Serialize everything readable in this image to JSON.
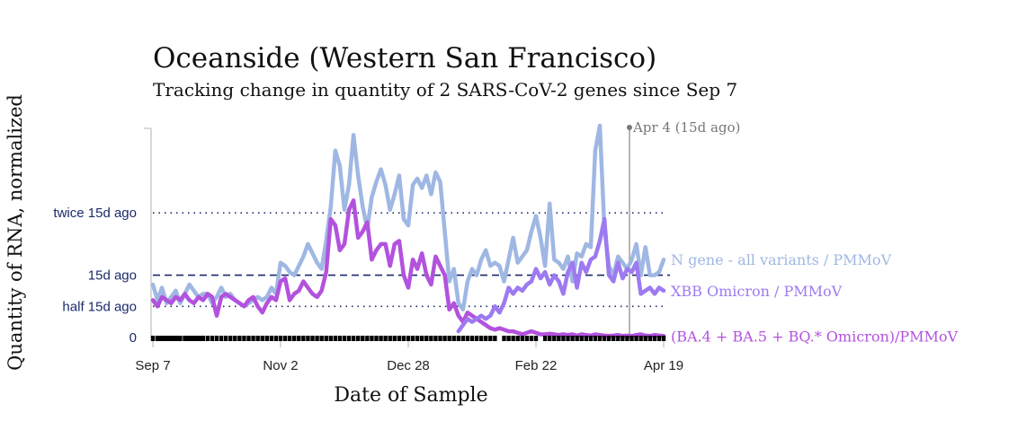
{
  "chart_data": {
    "type": "line",
    "title": "Oceanside (Western San Francisco)",
    "subtitle": "Tracking change in quantity of 2 SARS-CoV-2 genes since Sep 7",
    "xlabel": "Date of Sample",
    "ylabel": "Quantity of RNA, normalized",
    "x_ticks": [
      {
        "label": "Sep 7",
        "day": 0
      },
      {
        "label": "Nov 2",
        "day": 56
      },
      {
        "label": "Dec 28",
        "day": 112
      },
      {
        "label": "Feb 22",
        "day": 168
      },
      {
        "label": "Apr 19",
        "day": 224
      }
    ],
    "xlim": [
      0,
      224
    ],
    "ylim": [
      0,
      6.8
    ],
    "y_ticks": [
      {
        "label": "0",
        "value": 0
      },
      {
        "label": "half 15d ago",
        "value": 1,
        "style": "dotted"
      },
      {
        "label": "15d ago",
        "value": 2,
        "style": "dashed"
      },
      {
        "label": "twice 15d ago",
        "value": 4,
        "style": "dotted"
      }
    ],
    "annotation": {
      "label": "Apr 4 (15d ago)",
      "day": 209
    },
    "series": [
      {
        "name": "N gene - all variants / PMMoV",
        "label": "N gene - all variants / PMMoV",
        "color": "#9fb7e3",
        "x": [
          0,
          2,
          4,
          6,
          8,
          10,
          12,
          14,
          16,
          18,
          20,
          22,
          24,
          26,
          28,
          30,
          32,
          34,
          36,
          38,
          40,
          42,
          44,
          46,
          48,
          50,
          52,
          54,
          56,
          58,
          60,
          62,
          64,
          66,
          68,
          70,
          72,
          74,
          76,
          78,
          80,
          82,
          84,
          86,
          88,
          90,
          92,
          94,
          96,
          98,
          100,
          102,
          104,
          106,
          108,
          110,
          112,
          114,
          116,
          118,
          120,
          122,
          124,
          126,
          128,
          130,
          132,
          134,
          136,
          138,
          140,
          142,
          144,
          146,
          148,
          150,
          152,
          154,
          156,
          158,
          160,
          162,
          164,
          166,
          168,
          170,
          172,
          174,
          176,
          178,
          180,
          182,
          184,
          186,
          188,
          190,
          192,
          194,
          196,
          198,
          200,
          202,
          204,
          206,
          208,
          210,
          212,
          214,
          216,
          218,
          220,
          222,
          224
        ],
        "values": [
          1.7,
          1.2,
          1.6,
          1.1,
          1.3,
          1.5,
          1.1,
          1.4,
          1.7,
          1.5,
          1.3,
          1.4,
          1.4,
          1.1,
          1.3,
          1.6,
          1.3,
          1.4,
          1.2,
          1.1,
          1.0,
          1.1,
          1.2,
          1.3,
          1.2,
          1.3,
          1.6,
          1.4,
          2.4,
          2.3,
          2.1,
          2.0,
          2.3,
          2.6,
          3.0,
          2.7,
          2.4,
          2.2,
          3.1,
          4.2,
          6.0,
          5.5,
          4.1,
          4.9,
          6.5,
          5.2,
          4.2,
          3.5,
          4.5,
          5.0,
          5.4,
          4.9,
          4.1,
          4.6,
          5.2,
          3.8,
          3.6,
          4.9,
          5.1,
          4.8,
          5.2,
          4.6,
          5.3,
          5.0,
          3.4,
          1.8,
          2.2,
          1.1,
          0.9,
          1.8,
          2.2,
          2.0,
          2.5,
          2.8,
          2.3,
          2.4,
          2.3,
          1.8,
          2.5,
          3.2,
          2.4,
          2.6,
          2.8,
          3.4,
          3.9,
          3.2,
          2.3,
          4.3,
          2.5,
          2.4,
          2.2,
          2.6,
          1.8,
          2.7,
          2.6,
          3.0,
          2.9,
          6.0,
          6.8,
          3.5,
          2.3,
          2.0,
          2.6,
          2.4,
          2.2,
          2.5,
          3.0,
          2.0,
          2.9,
          2.0,
          2.0,
          2.1,
          2.5
        ]
      },
      {
        "name": "XBB Omicron / PMMoV",
        "label": "XBB Omicron / PMMoV",
        "color": "#9d7af0",
        "x": [
          134,
          136,
          138,
          140,
          142,
          144,
          146,
          148,
          150,
          152,
          154,
          156,
          158,
          160,
          162,
          164,
          166,
          168,
          170,
          172,
          174,
          176,
          178,
          180,
          182,
          184,
          186,
          188,
          190,
          192,
          194,
          196,
          198,
          200,
          202,
          204,
          206,
          208,
          210,
          212,
          214,
          216,
          218,
          220,
          222,
          224
        ],
        "values": [
          0.2,
          0.4,
          0.6,
          0.5,
          0.6,
          0.7,
          0.6,
          0.7,
          1.0,
          0.8,
          1.1,
          1.6,
          1.4,
          1.6,
          1.5,
          1.7,
          1.8,
          2.2,
          1.9,
          2.1,
          1.7,
          2.0,
          1.8,
          1.4,
          2.1,
          2.4,
          1.6,
          2.4,
          2.1,
          2.5,
          2.6,
          3.1,
          3.8,
          2.0,
          1.8,
          2.4,
          1.9,
          2.2,
          2.1,
          2.4,
          1.4,
          1.5,
          1.6,
          1.4,
          1.6,
          1.5
        ]
      },
      {
        "name": "(BA.4 + BA.5 + BQ.* Omicron)/PMMoV",
        "label": "(BA.4 + BA.5 + BQ.* Omicron)/PMMoV",
        "color": "#b252de",
        "x": [
          0,
          2,
          4,
          6,
          8,
          10,
          12,
          14,
          16,
          18,
          20,
          22,
          24,
          26,
          28,
          30,
          32,
          34,
          36,
          38,
          40,
          42,
          44,
          46,
          48,
          50,
          52,
          54,
          56,
          58,
          60,
          62,
          64,
          66,
          68,
          70,
          72,
          74,
          76,
          78,
          80,
          82,
          84,
          86,
          88,
          90,
          92,
          94,
          96,
          98,
          100,
          102,
          104,
          106,
          108,
          110,
          112,
          114,
          116,
          118,
          120,
          122,
          124,
          126,
          128,
          130,
          132,
          134,
          136,
          138,
          140,
          142,
          144,
          146,
          148,
          150,
          152,
          154,
          156,
          158,
          160,
          162,
          164,
          166,
          168,
          170,
          172,
          174,
          176,
          178,
          180,
          182,
          184,
          186,
          188,
          190,
          192,
          194,
          196,
          198,
          200,
          202,
          204,
          206,
          208,
          210,
          212,
          214,
          216,
          218,
          220,
          222,
          224
        ],
        "values": [
          1.2,
          1.0,
          1.3,
          1.2,
          1.1,
          1.3,
          1.2,
          1.4,
          1.2,
          1.1,
          1.3,
          1.2,
          1.4,
          1.3,
          0.7,
          1.3,
          1.4,
          1.3,
          1.2,
          1.1,
          1.0,
          1.2,
          1.3,
          1.0,
          0.8,
          1.1,
          1.3,
          1.2,
          1.8,
          1.9,
          1.2,
          1.4,
          1.5,
          1.8,
          1.6,
          1.4,
          1.3,
          1.5,
          2.1,
          3.8,
          3.6,
          2.8,
          3.0,
          4.1,
          4.4,
          3.2,
          3.4,
          3.7,
          2.5,
          2.8,
          3.0,
          3.0,
          2.3,
          3.0,
          3.1,
          2.0,
          1.6,
          2.5,
          2.2,
          2.7,
          2.0,
          1.7,
          2.6,
          2.3,
          2.0,
          0.9,
          1.1,
          0.7,
          0.5,
          0.8,
          0.7,
          0.6,
          0.5,
          0.4,
          0.3,
          0.25,
          0.3,
          0.25,
          0.2,
          0.2,
          0.15,
          0.1,
          0.15,
          0.2,
          0.15,
          0.1,
          0.1,
          0.12,
          0.1,
          0.08,
          0.1,
          0.08,
          0.1,
          0.06,
          0.1,
          0.08,
          0.06,
          0.1,
          0.08,
          0.06,
          0.05,
          0.06,
          0.08,
          0.05,
          0.06,
          0.05,
          0.08,
          0.1,
          0.06,
          0.05,
          0.08,
          0.06,
          0.05
        ]
      }
    ]
  }
}
